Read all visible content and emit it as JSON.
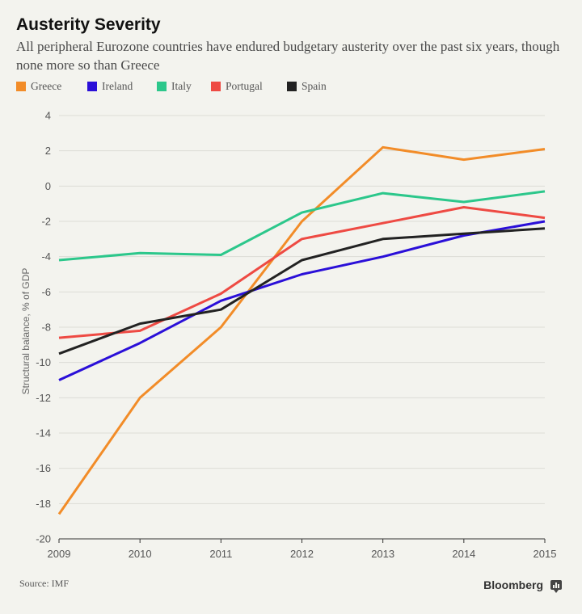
{
  "chart_data": {
    "type": "line",
    "title": "Austerity Severity",
    "subtitle": "All peripheral Eurozone countries have endured budgetary austerity over the past six years, though none more so than Greece",
    "xlabel": "",
    "ylabel": "Structural balance, % of GDP",
    "x": [
      "2009",
      "2010",
      "2011",
      "2012",
      "2013",
      "2014",
      "2015"
    ],
    "ylim": [
      -20,
      4
    ],
    "yticks": [
      "4",
      "2",
      "0",
      "-2",
      "-4",
      "-6",
      "-8",
      "-10",
      "-12",
      "-14",
      "-16",
      "-18",
      "-20"
    ],
    "ytick_values": [
      4,
      2,
      0,
      -2,
      -4,
      -6,
      -8,
      -10,
      -12,
      -14,
      -16,
      -18,
      -20
    ],
    "grid": true,
    "legend_position": "top",
    "series": [
      {
        "name": "Greece",
        "color": "#f28c28",
        "values": [
          -18.6,
          -12.0,
          -8.0,
          -2.0,
          2.2,
          1.5,
          2.1
        ]
      },
      {
        "name": "Ireland",
        "color": "#2a0fd8",
        "values": [
          -11.0,
          -8.9,
          -6.5,
          -5.0,
          -4.0,
          -2.8,
          -2.0
        ]
      },
      {
        "name": "Italy",
        "color": "#2cc78b",
        "values": [
          -4.2,
          -3.8,
          -3.9,
          -1.5,
          -0.4,
          -0.9,
          -0.3
        ]
      },
      {
        "name": "Portugal",
        "color": "#ee4a43",
        "values": [
          -8.6,
          -8.2,
          -6.1,
          -3.0,
          -2.1,
          -1.2,
          -1.8
        ]
      },
      {
        "name": "Spain",
        "color": "#222222",
        "values": [
          -9.5,
          -7.8,
          -7.0,
          -4.2,
          -3.0,
          -2.7,
          -2.4
        ]
      }
    ]
  },
  "footer": {
    "source": "Source: IMF",
    "brand": "Bloomberg"
  }
}
